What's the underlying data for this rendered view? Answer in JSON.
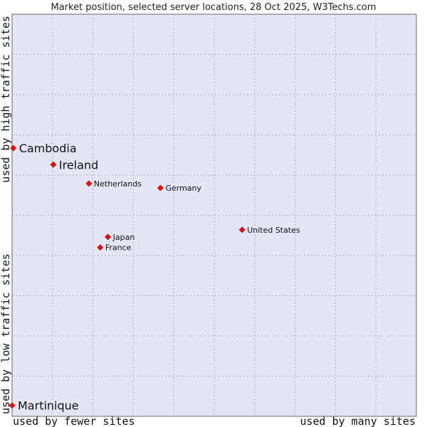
{
  "chart_data": {
    "type": "scatter",
    "title": "Market position, selected server locations, 28 Oct 2025, W3Techs.com",
    "xlabel_left": "used by fewer sites",
    "xlabel_right": "used by many sites",
    "ylabel_top": "used by high traffic sites",
    "ylabel_bottom": "used by low traffic sites",
    "xlim": [
      0,
      100
    ],
    "ylim": [
      0,
      100
    ],
    "grid": true,
    "point_color": "#ff0000",
    "background_color": "#e4e6f6",
    "points": [
      {
        "name": "Cambodia",
        "x": 0.3,
        "y": 66.7,
        "highlight": true
      },
      {
        "name": "Ireland",
        "x": 10.2,
        "y": 62.6,
        "highlight": true
      },
      {
        "name": "Netherlands",
        "x": 19.0,
        "y": 57.9,
        "highlight": false
      },
      {
        "name": "Germany",
        "x": 36.7,
        "y": 56.8,
        "highlight": false
      },
      {
        "name": "United States",
        "x": 56.9,
        "y": 46.4,
        "highlight": false
      },
      {
        "name": "Japan",
        "x": 23.7,
        "y": 44.6,
        "highlight": false
      },
      {
        "name": "France",
        "x": 21.8,
        "y": 42.0,
        "highlight": false
      },
      {
        "name": "Martinique",
        "x": 0.0,
        "y": 2.7,
        "highlight": true
      }
    ]
  }
}
